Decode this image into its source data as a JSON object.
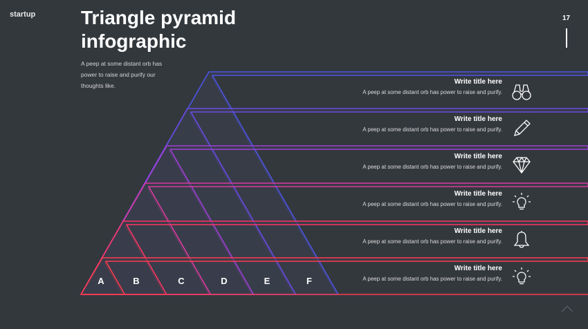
{
  "brand": "startup",
  "title_line1": "Triangle pyramid",
  "title_line2": "infographic",
  "description_lines": [
    "A peep at some distant orb has",
    "power to raise and purify our",
    "thoughts like."
  ],
  "page_number": "17",
  "labels": [
    "A",
    "B",
    "C",
    "D",
    "E",
    "F"
  ],
  "items": [
    {
      "title": "Write title here",
      "text": "A peep at some distant orb has power to raise and purify.",
      "icon": "binoculars-icon"
    },
    {
      "title": "Write title here",
      "text": "A peep at some distant orb has power to raise and purify.",
      "icon": "pencil-icon"
    },
    {
      "title": "Write title here",
      "text": "A peep at some distant orb has power to raise and purify.",
      "icon": "diamond-icon"
    },
    {
      "title": "Write title here",
      "text": "A peep at some distant orb has power to raise and purify.",
      "icon": "lightbulb-icon"
    },
    {
      "title": "Write title here",
      "text": "A peep at some distant orb has power to raise and purify.",
      "icon": "bell-icon"
    },
    {
      "title": "Write title here",
      "text": "A peep at some distant orb has power to raise and purify.",
      "icon": "lightbulb-icon"
    }
  ],
  "colors": {
    "background": "#33383d",
    "layer_colors": [
      "#ff3b4e",
      "#ff3565",
      "#d93aa0",
      "#a040d8",
      "#6a4be6",
      "#4f55e6"
    ]
  }
}
